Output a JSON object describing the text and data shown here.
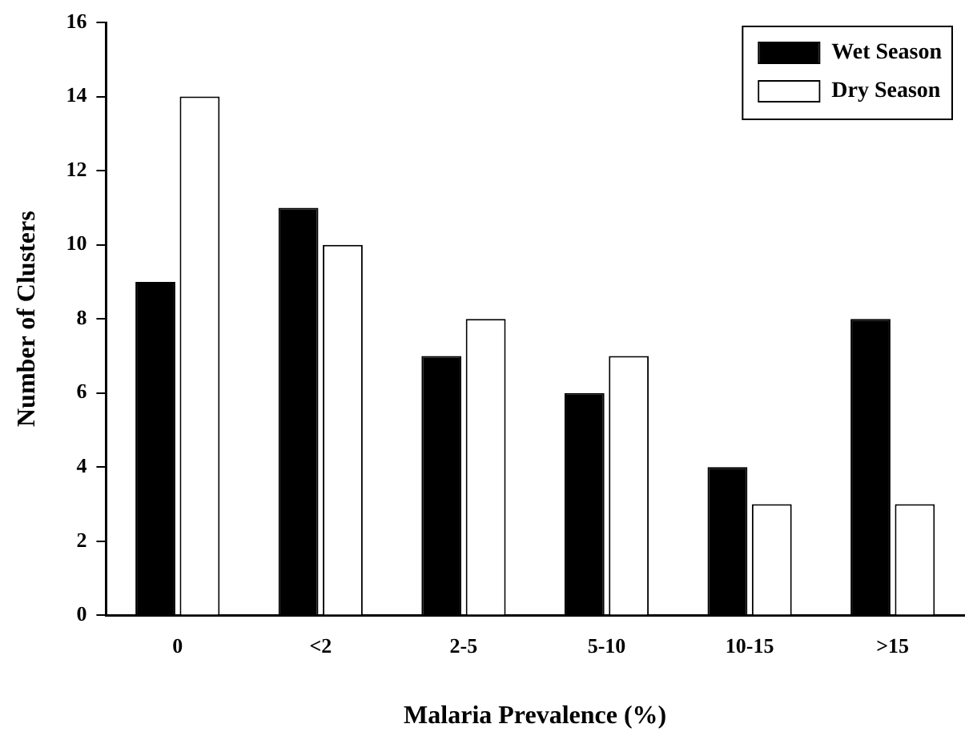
{
  "chart_data": {
    "type": "bar",
    "xlabel": "Malaria Prevalence (%)",
    "ylabel": "Number of Clusters",
    "categories": [
      "0",
      "<2",
      "2-5",
      "5-10",
      "10-15",
      ">15"
    ],
    "series": [
      {
        "name": "Wet Season",
        "color": "#000000",
        "values": [
          9,
          11,
          7,
          6,
          4,
          8
        ]
      },
      {
        "name": "Dry Season",
        "color": "#ffffff",
        "values": [
          14,
          10,
          8,
          7,
          3,
          3
        ]
      }
    ],
    "ylim": [
      0,
      16
    ],
    "yticks": [
      0,
      2,
      4,
      6,
      8,
      10,
      12,
      14,
      16
    ],
    "grid": false,
    "legend": "top right"
  }
}
